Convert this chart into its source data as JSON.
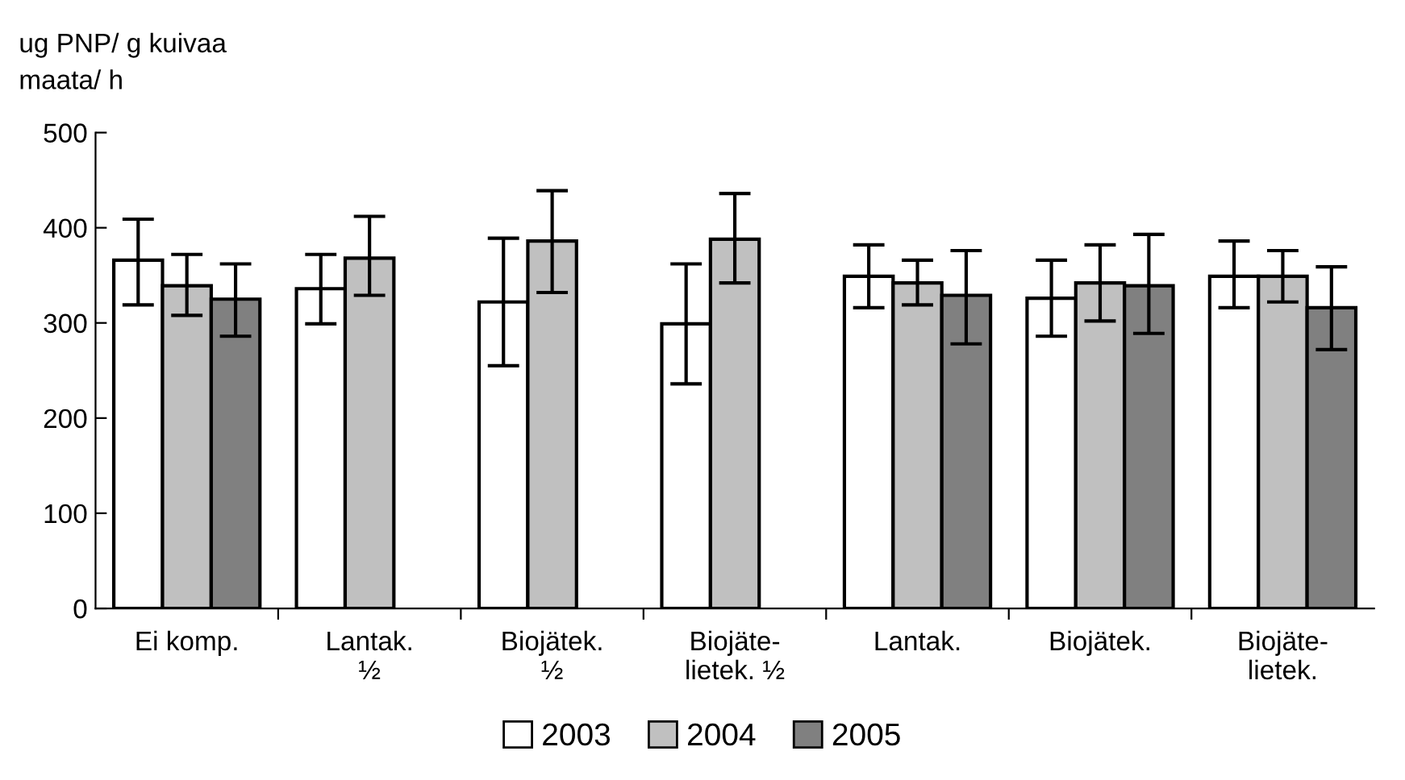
{
  "chart_data": {
    "type": "bar",
    "ylabel": "ug PNP/ g kuivaa\nmaata/ h",
    "categories": [
      "Ei komp.",
      "Lantak.\n½",
      "Biojätek.\n½",
      "Biojäte-\nlietek. ½",
      "Lantak.",
      "Biojätek.",
      "Biojäte-\nlietek."
    ],
    "series": [
      {
        "name": "2003",
        "color": "#ffffff",
        "values": [
          366,
          336,
          322,
          299,
          349,
          326,
          349
        ],
        "errors": [
          [
            319,
            409
          ],
          [
            299,
            372
          ],
          [
            255,
            389
          ],
          [
            236,
            362
          ],
          [
            316,
            382
          ],
          [
            286,
            366
          ],
          [
            316,
            386
          ]
        ]
      },
      {
        "name": "2004",
        "color": "#c0c0c0",
        "values": [
          339,
          368,
          386,
          388,
          342,
          342,
          349
        ],
        "errors": [
          [
            308,
            372
          ],
          [
            329,
            412
          ],
          [
            332,
            439
          ],
          [
            342,
            436
          ],
          [
            319,
            366
          ],
          [
            302,
            382
          ],
          [
            322,
            376
          ]
        ]
      },
      {
        "name": "2005",
        "color": "#808080",
        "values": [
          325,
          null,
          null,
          null,
          329,
          339,
          316
        ],
        "errors": [
          [
            286,
            362
          ],
          null,
          null,
          null,
          [
            278,
            376
          ],
          [
            289,
            393
          ],
          [
            272,
            359
          ]
        ]
      }
    ],
    "ylim": [
      0,
      500
    ],
    "yticks": [
      0,
      100,
      200,
      300,
      400,
      500
    ],
    "grid": false,
    "legend": "bottom"
  }
}
